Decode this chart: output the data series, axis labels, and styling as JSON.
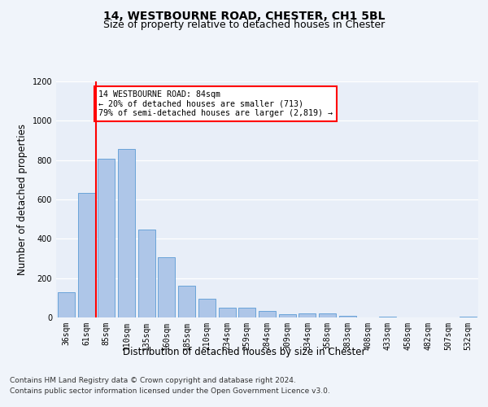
{
  "title": "14, WESTBOURNE ROAD, CHESTER, CH1 5BL",
  "subtitle": "Size of property relative to detached houses in Chester",
  "xlabel": "Distribution of detached houses by size in Chester",
  "ylabel": "Number of detached properties",
  "categories": [
    "36sqm",
    "61sqm",
    "85sqm",
    "110sqm",
    "135sqm",
    "160sqm",
    "185sqm",
    "210sqm",
    "234sqm",
    "259sqm",
    "284sqm",
    "309sqm",
    "334sqm",
    "358sqm",
    "383sqm",
    "408sqm",
    "433sqm",
    "458sqm",
    "482sqm",
    "507sqm",
    "532sqm"
  ],
  "values": [
    130,
    635,
    805,
    855,
    445,
    305,
    160,
    95,
    50,
    50,
    35,
    15,
    20,
    20,
    8,
    2,
    5,
    2,
    2,
    0,
    5
  ],
  "bar_color": "#aec6e8",
  "bar_edge_color": "#5b9bd5",
  "vline_color": "red",
  "annotation_text": "14 WESTBOURNE ROAD: 84sqm\n← 20% of detached houses are smaller (713)\n79% of semi-detached houses are larger (2,819) →",
  "annotation_box_color": "white",
  "annotation_box_edge": "red",
  "ylim": [
    0,
    1200
  ],
  "yticks": [
    0,
    200,
    400,
    600,
    800,
    1000,
    1200
  ],
  "footer_line1": "Contains HM Land Registry data © Crown copyright and database right 2024.",
  "footer_line2": "Contains public sector information licensed under the Open Government Licence v3.0.",
  "bg_color": "#f0f4fa",
  "plot_bg_color": "#e8eef8",
  "grid_color": "white",
  "title_fontsize": 10,
  "subtitle_fontsize": 9,
  "label_fontsize": 8.5,
  "tick_fontsize": 7,
  "footer_fontsize": 6.5
}
